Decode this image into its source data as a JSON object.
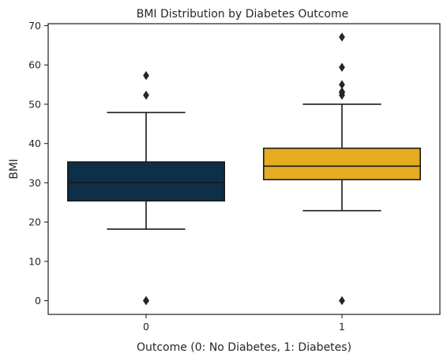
{
  "chart_data": {
    "type": "box",
    "title": "BMI Distribution by Diabetes Outcome",
    "xlabel": "Outcome (0: No Diabetes, 1: Diabetes)",
    "ylabel": "BMI",
    "ylim": [
      -3.5,
      70.5
    ],
    "yticks": [
      0,
      10,
      20,
      30,
      40,
      50,
      60,
      70
    ],
    "categories": [
      "0",
      "1"
    ],
    "grid": false,
    "boxes": [
      {
        "category": "0",
        "color": "#0d2f47",
        "whisker_low": 18.2,
        "q1": 25.4,
        "median": 30.05,
        "q3": 35.3,
        "whisker_high": 47.9,
        "outliers": [
          0,
          0,
          0,
          52.3,
          57.3
        ]
      },
      {
        "category": "1",
        "color": "#e5ac22",
        "whisker_low": 22.9,
        "q1": 30.8,
        "median": 34.25,
        "q3": 38.8,
        "whisker_high": 50.0,
        "outliers": [
          0,
          52.3,
          52.9,
          53.2,
          55.0,
          59.4,
          67.1
        ]
      }
    ]
  }
}
